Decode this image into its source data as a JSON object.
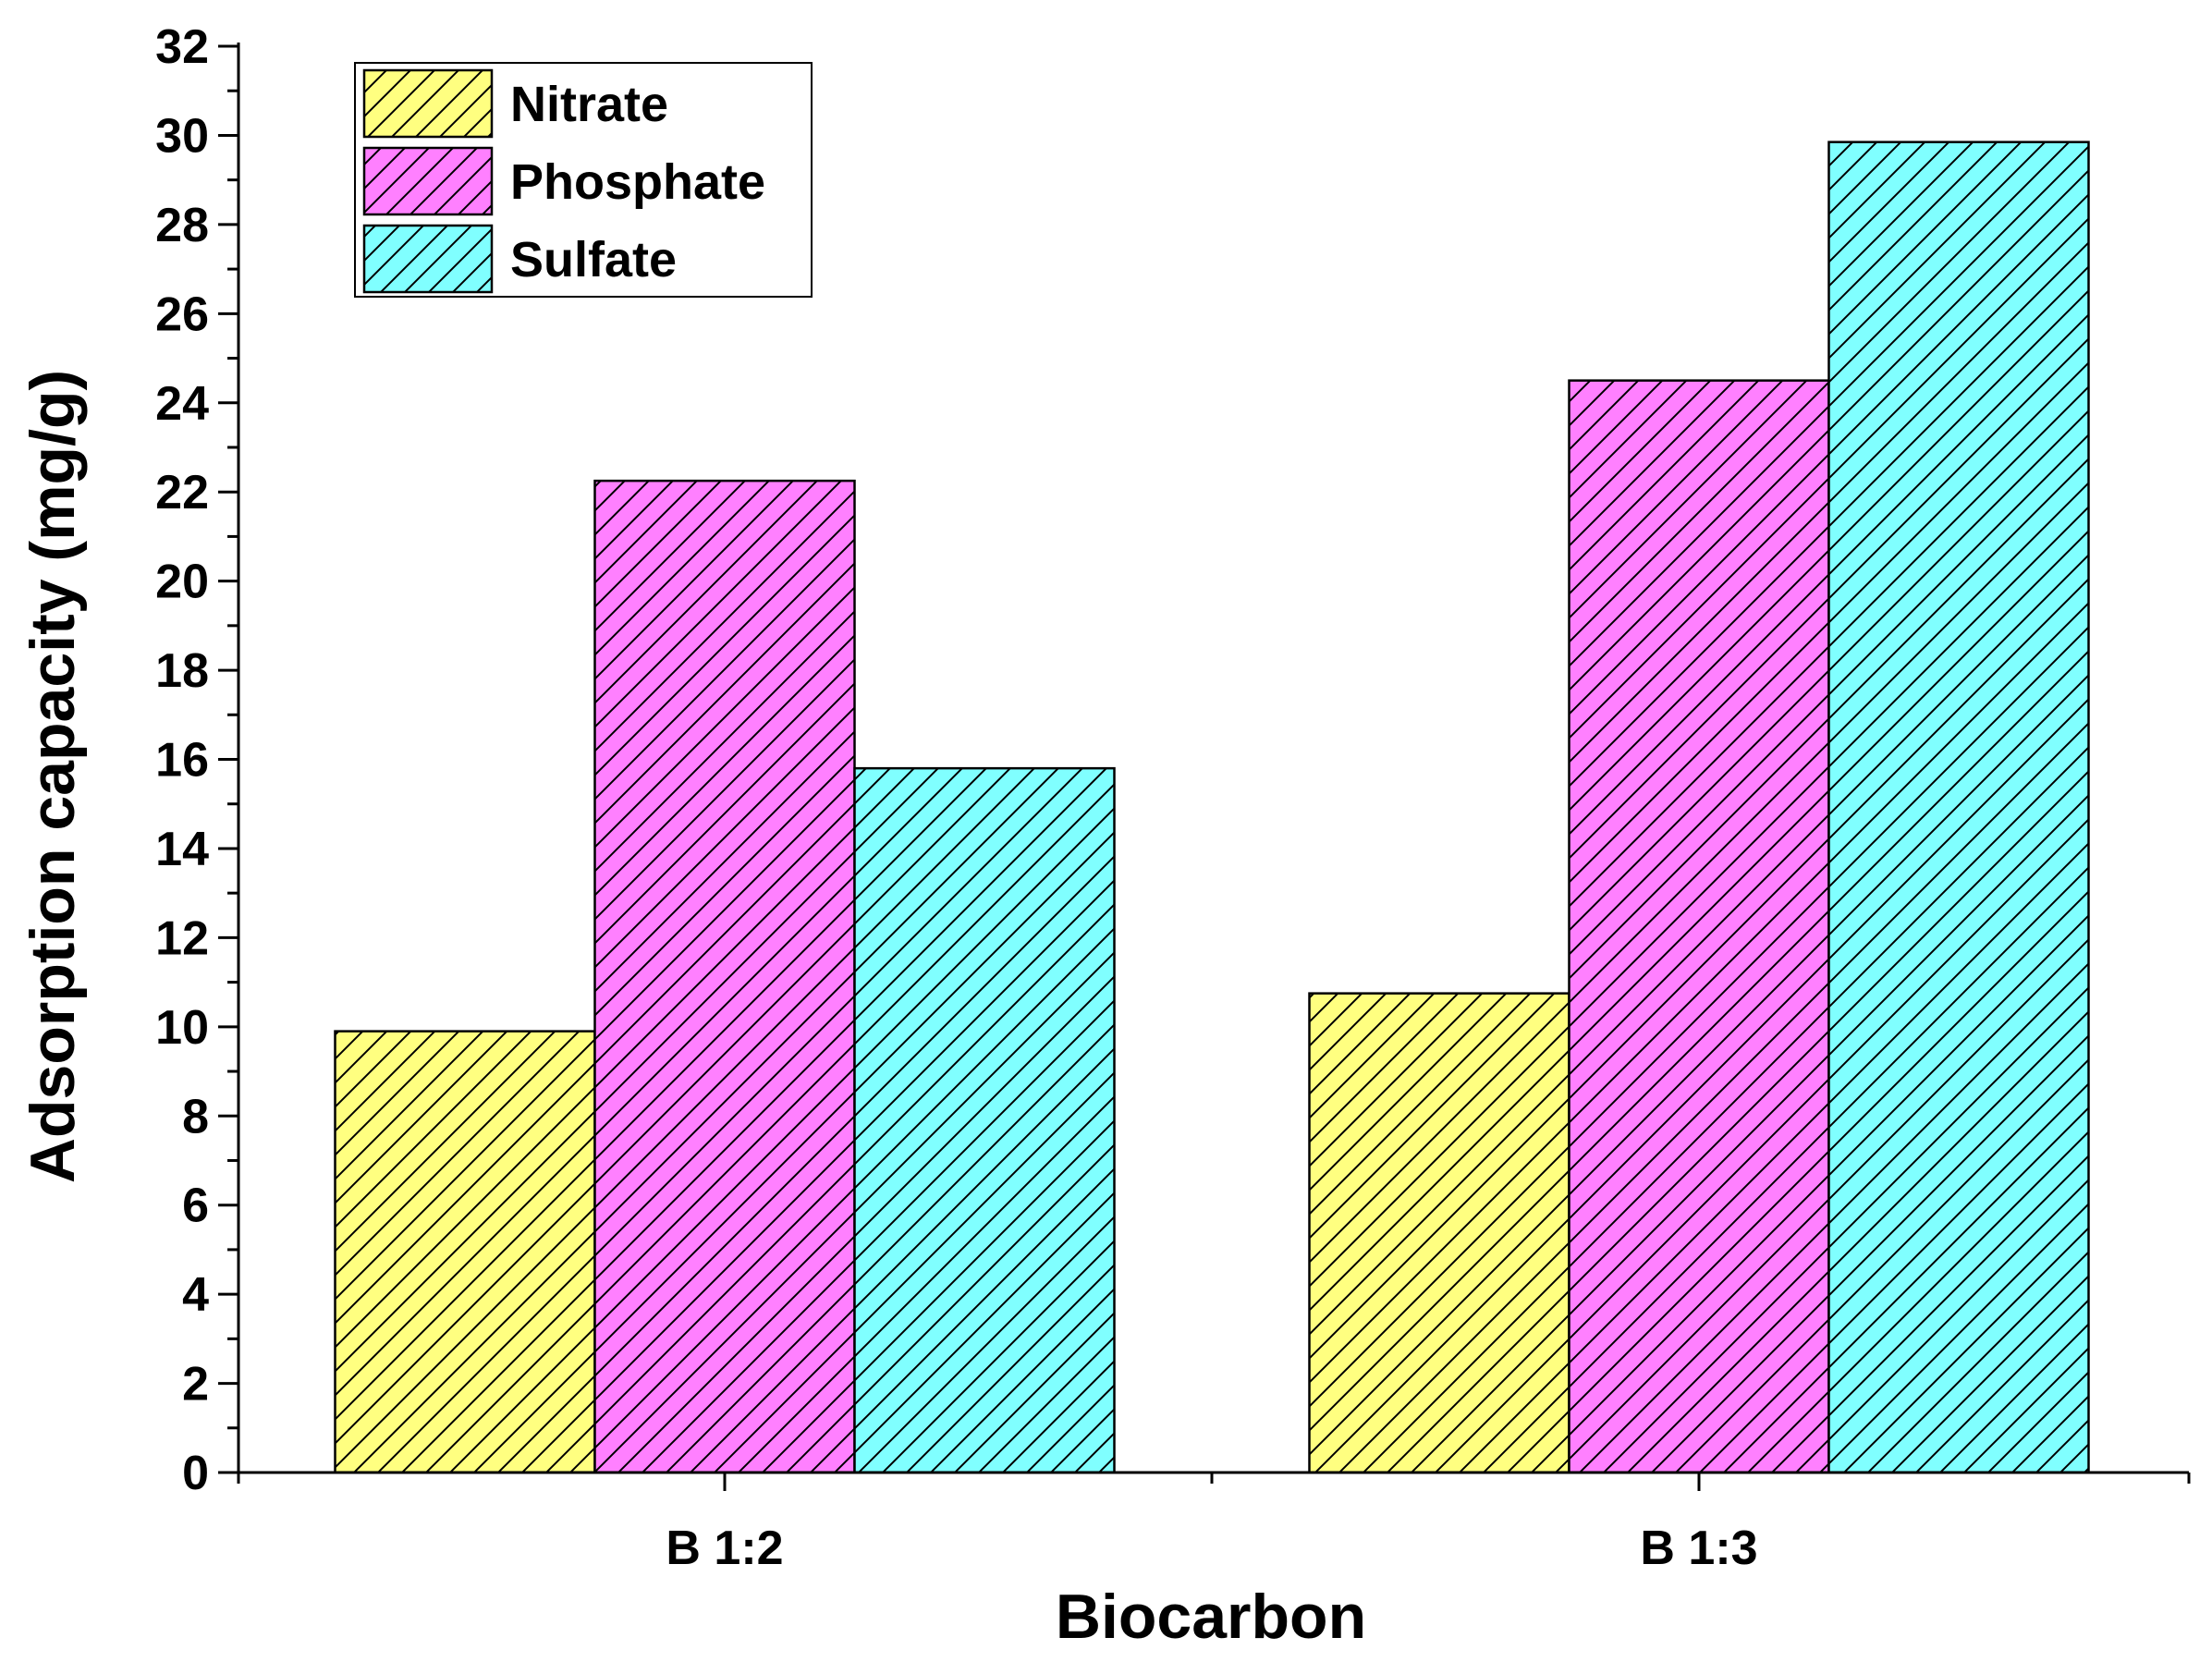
{
  "chart_data": {
    "type": "bar",
    "title": "",
    "xlabel": "Biocarbon",
    "ylabel": "Adsorption capacity (mg/g)",
    "categories": [
      "B 1:2",
      "B 1:3"
    ],
    "series": [
      {
        "name": "Nitrate",
        "color": "#FFFF80",
        "values": [
          9.9,
          10.75
        ]
      },
      {
        "name": "Phosphate",
        "color": "#FF80FF",
        "values": [
          22.25,
          24.5
        ]
      },
      {
        "name": "Sulfate",
        "color": "#80FFFF",
        "values": [
          15.8,
          29.85
        ]
      }
    ],
    "ylim": [
      0,
      32
    ],
    "yticks": [
      0,
      2,
      4,
      6,
      8,
      10,
      12,
      14,
      16,
      18,
      20,
      22,
      24,
      26,
      28,
      30,
      32
    ],
    "legend_position": "top-left",
    "grid": false,
    "bar_pattern": "diagonal-hatch"
  }
}
